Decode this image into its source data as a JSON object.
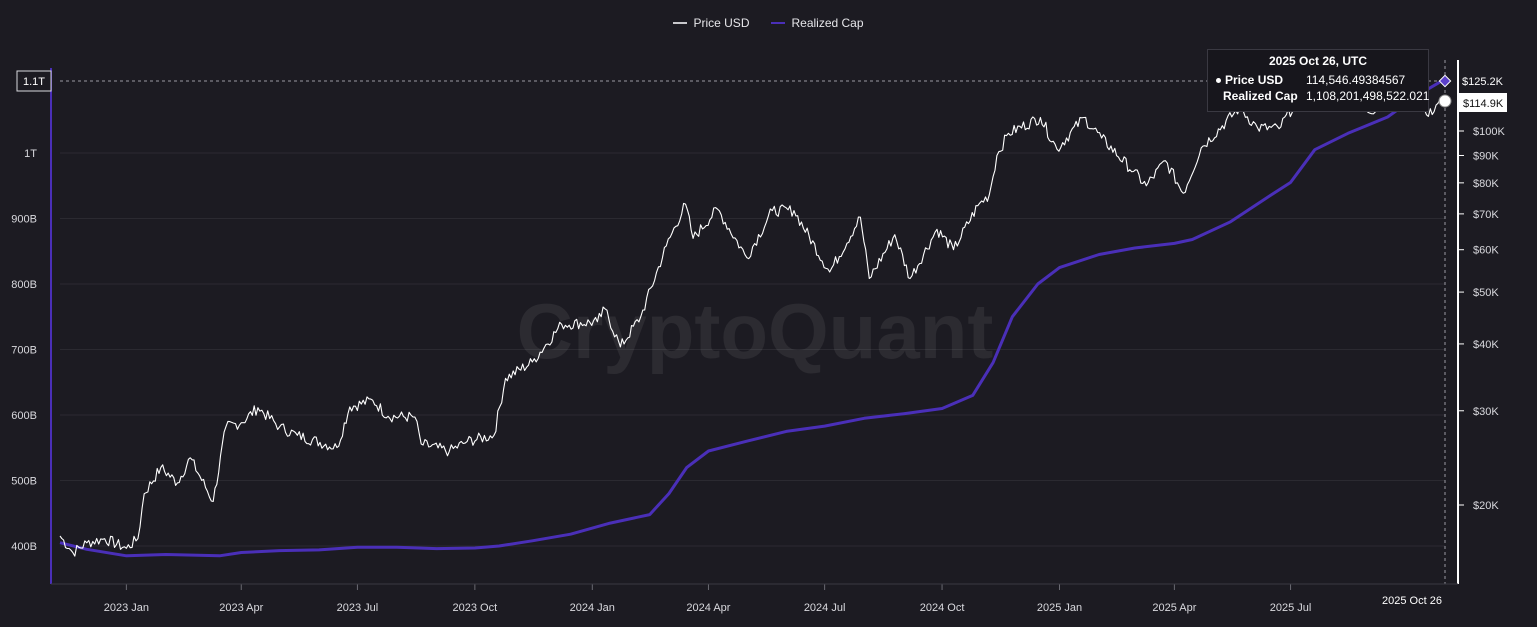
{
  "legend": {
    "price_label": "Price USD",
    "realized_label": "Realized Cap"
  },
  "watermark": "CryptoQuant",
  "tooltip": {
    "date": "2025 Oct 26, UTC",
    "price_name": "Price USD",
    "price_value": "114,546.49384567",
    "realized_name": "Realized Cap",
    "realized_value": "1,108,201,498,522.021"
  },
  "crosshair": {
    "left_label": "1.1T",
    "date_label": "2025 Oct 26",
    "price_marker_label": "$125.2K",
    "price_label": "$114.9K"
  },
  "colors": {
    "background": "#1c1b22",
    "price": "#ffffff",
    "realized": "#4a2fb8",
    "grid": "#2b2a31"
  },
  "chart_data": {
    "type": "line",
    "title": "",
    "x_ticks": [
      "2023 Jan",
      "2023 Apr",
      "2023 Jul",
      "2023 Oct",
      "2024 Jan",
      "2024 Apr",
      "2024 Jul",
      "2024 Oct",
      "2025 Jan",
      "2025 Apr",
      "2025 Jul"
    ],
    "x_range": [
      "2022-11-10",
      "2025-10-30"
    ],
    "left_axis": {
      "scale": "linear",
      "range": [
        370000000000,
        1140000000000
      ],
      "ticks": [
        {
          "label": "400B",
          "value": 400000000000
        },
        {
          "label": "500B",
          "value": 500000000000
        },
        {
          "label": "600B",
          "value": 600000000000
        },
        {
          "label": "700B",
          "value": 700000000000
        },
        {
          "label": "800B",
          "value": 800000000000
        },
        {
          "label": "900B",
          "value": 900000000000
        },
        {
          "label": "1T",
          "value": 1000000000000
        }
      ]
    },
    "right_axis": {
      "scale": "log",
      "ticks": [
        {
          "label": "$20K",
          "value": 20000
        },
        {
          "label": "$30K",
          "value": 30000
        },
        {
          "label": "$40K",
          "value": 40000
        },
        {
          "label": "$50K",
          "value": 50000
        },
        {
          "label": "$60K",
          "value": 60000
        },
        {
          "label": "$70K",
          "value": 70000
        },
        {
          "label": "$80K",
          "value": 80000
        },
        {
          "label": "$90K",
          "value": 90000
        },
        {
          "label": "$100K",
          "value": 100000
        }
      ]
    },
    "series": [
      {
        "name": "Price USD",
        "axis": "right",
        "points": [
          [
            "2022-11-10",
            17500
          ],
          [
            "2022-11-20",
            16300
          ],
          [
            "2022-12-01",
            17000
          ],
          [
            "2022-12-15",
            17300
          ],
          [
            "2023-01-01",
            16600
          ],
          [
            "2023-01-10",
            17300
          ],
          [
            "2023-01-15",
            21000
          ],
          [
            "2023-01-28",
            23500
          ],
          [
            "2023-02-10",
            22000
          ],
          [
            "2023-02-20",
            24500
          ],
          [
            "2023-03-10",
            20300
          ],
          [
            "2023-03-20",
            28000
          ],
          [
            "2023-04-01",
            28500
          ],
          [
            "2023-04-14",
            30400
          ],
          [
            "2023-05-01",
            28000
          ],
          [
            "2023-05-15",
            27000
          ],
          [
            "2023-06-15",
            25600
          ],
          [
            "2023-06-25",
            30500
          ],
          [
            "2023-07-13",
            31400
          ],
          [
            "2023-07-25",
            29300
          ],
          [
            "2023-08-15",
            29200
          ],
          [
            "2023-08-20",
            26000
          ],
          [
            "2023-09-11",
            25200
          ],
          [
            "2023-09-25",
            26300
          ],
          [
            "2023-10-16",
            27000
          ],
          [
            "2023-10-25",
            34500
          ],
          [
            "2023-11-15",
            37000
          ],
          [
            "2023-12-08",
            43500
          ],
          [
            "2024-01-05",
            44000
          ],
          [
            "2024-01-11",
            46500
          ],
          [
            "2024-01-23",
            39500
          ],
          [
            "2024-02-08",
            45000
          ],
          [
            "2024-02-28",
            61000
          ],
          [
            "2024-03-14",
            73000
          ],
          [
            "2024-03-20",
            63000
          ],
          [
            "2024-04-08",
            71500
          ],
          [
            "2024-05-01",
            58000
          ],
          [
            "2024-05-21",
            71000
          ],
          [
            "2024-06-07",
            71000
          ],
          [
            "2024-07-05",
            54500
          ],
          [
            "2024-07-29",
            69000
          ],
          [
            "2024-08-05",
            53000
          ],
          [
            "2024-08-25",
            64000
          ],
          [
            "2024-09-06",
            53000
          ],
          [
            "2024-09-27",
            65500
          ],
          [
            "2024-10-10",
            60000
          ],
          [
            "2024-10-29",
            72500
          ],
          [
            "2024-11-07",
            76000
          ],
          [
            "2024-11-13",
            90000
          ],
          [
            "2024-11-22",
            99000
          ],
          [
            "2024-12-17",
            106000
          ],
          [
            "2024-12-30",
            92500
          ],
          [
            "2025-01-20",
            106000
          ],
          [
            "2025-02-03",
            97000
          ],
          [
            "2025-02-28",
            84000
          ],
          [
            "2025-03-10",
            79000
          ],
          [
            "2025-03-25",
            88000
          ],
          [
            "2025-04-08",
            76500
          ],
          [
            "2025-04-22",
            93000
          ],
          [
            "2025-05-22",
            110500
          ],
          [
            "2025-06-05",
            101500
          ],
          [
            "2025-06-22",
            101000
          ],
          [
            "2025-07-14",
            122500
          ],
          [
            "2025-08-02",
            113000
          ],
          [
            "2025-08-14",
            123500
          ],
          [
            "2025-09-01",
            108000
          ],
          [
            "2025-09-14",
            116000
          ],
          [
            "2025-09-25",
            109000
          ],
          [
            "2025-10-06",
            124500
          ],
          [
            "2025-10-11",
            111000
          ],
          [
            "2025-10-17",
            106500
          ],
          [
            "2025-10-26",
            114546.49
          ]
        ]
      },
      {
        "name": "Realized Cap",
        "axis": "left",
        "points": [
          [
            "2022-11-10",
            405000000000
          ],
          [
            "2022-12-01",
            395000000000
          ],
          [
            "2023-01-01",
            385000000000
          ],
          [
            "2023-02-01",
            387000000000
          ],
          [
            "2023-03-15",
            385000000000
          ],
          [
            "2023-04-01",
            390000000000
          ],
          [
            "2023-05-01",
            393000000000
          ],
          [
            "2023-06-01",
            394000000000
          ],
          [
            "2023-07-01",
            398000000000
          ],
          [
            "2023-08-01",
            398000000000
          ],
          [
            "2023-09-01",
            396000000000
          ],
          [
            "2023-10-01",
            397000000000
          ],
          [
            "2023-10-20",
            400000000000
          ],
          [
            "2023-11-15",
            408000000000
          ],
          [
            "2023-12-15",
            418000000000
          ],
          [
            "2024-01-15",
            435000000000
          ],
          [
            "2024-02-15",
            448000000000
          ],
          [
            "2024-03-01",
            480000000000
          ],
          [
            "2024-03-15",
            520000000000
          ],
          [
            "2024-04-01",
            545000000000
          ],
          [
            "2024-05-01",
            560000000000
          ],
          [
            "2024-06-01",
            575000000000
          ],
          [
            "2024-07-01",
            583000000000
          ],
          [
            "2024-08-01",
            595000000000
          ],
          [
            "2024-09-01",
            602000000000
          ],
          [
            "2024-10-01",
            610000000000
          ],
          [
            "2024-10-25",
            630000000000
          ],
          [
            "2024-11-10",
            680000000000
          ],
          [
            "2024-11-25",
            750000000000
          ],
          [
            "2024-12-15",
            800000000000
          ],
          [
            "2025-01-01",
            825000000000
          ],
          [
            "2025-02-01",
            845000000000
          ],
          [
            "2025-03-01",
            855000000000
          ],
          [
            "2025-04-01",
            862000000000
          ],
          [
            "2025-04-15",
            868000000000
          ],
          [
            "2025-05-15",
            895000000000
          ],
          [
            "2025-06-15",
            935000000000
          ],
          [
            "2025-07-01",
            955000000000
          ],
          [
            "2025-07-20",
            1005000000000
          ],
          [
            "2025-08-15",
            1030000000000
          ],
          [
            "2025-09-15",
            1055000000000
          ],
          [
            "2025-10-10",
            1090000000000
          ],
          [
            "2025-10-26",
            1108201498522
          ]
        ]
      }
    ]
  }
}
